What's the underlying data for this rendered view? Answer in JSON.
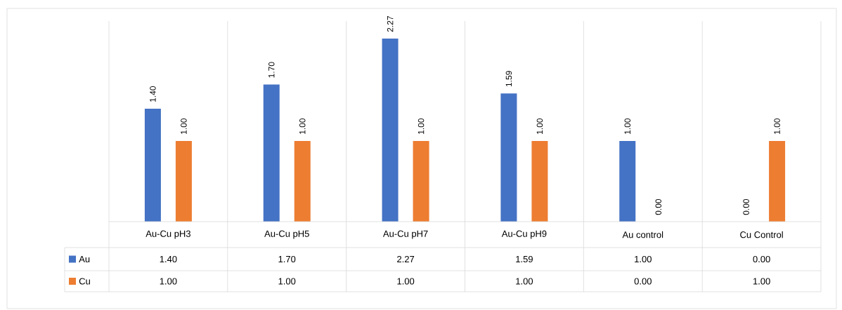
{
  "chart_data": {
    "type": "bar",
    "categories": [
      "Au-Cu pH3",
      "Au-Cu pH5",
      "Au-Cu pH7",
      "Au-Cu pH9",
      "Au control",
      "Cu Control"
    ],
    "series": [
      {
        "name": "Au",
        "color": "#4472c4",
        "values": [
          1.4,
          1.7,
          2.27,
          1.59,
          1.0,
          0.0
        ],
        "value_labels": [
          "1.40",
          "1.70",
          "2.27",
          "1.59",
          "1.00",
          "0.00"
        ]
      },
      {
        "name": "Cu",
        "color": "#ed7d31",
        "values": [
          1.0,
          1.0,
          1.0,
          1.0,
          0.0,
          1.0
        ],
        "value_labels": [
          "1.00",
          "1.00",
          "1.00",
          "1.00",
          "0.00",
          "1.00"
        ]
      }
    ],
    "legend": "bottom"
  }
}
